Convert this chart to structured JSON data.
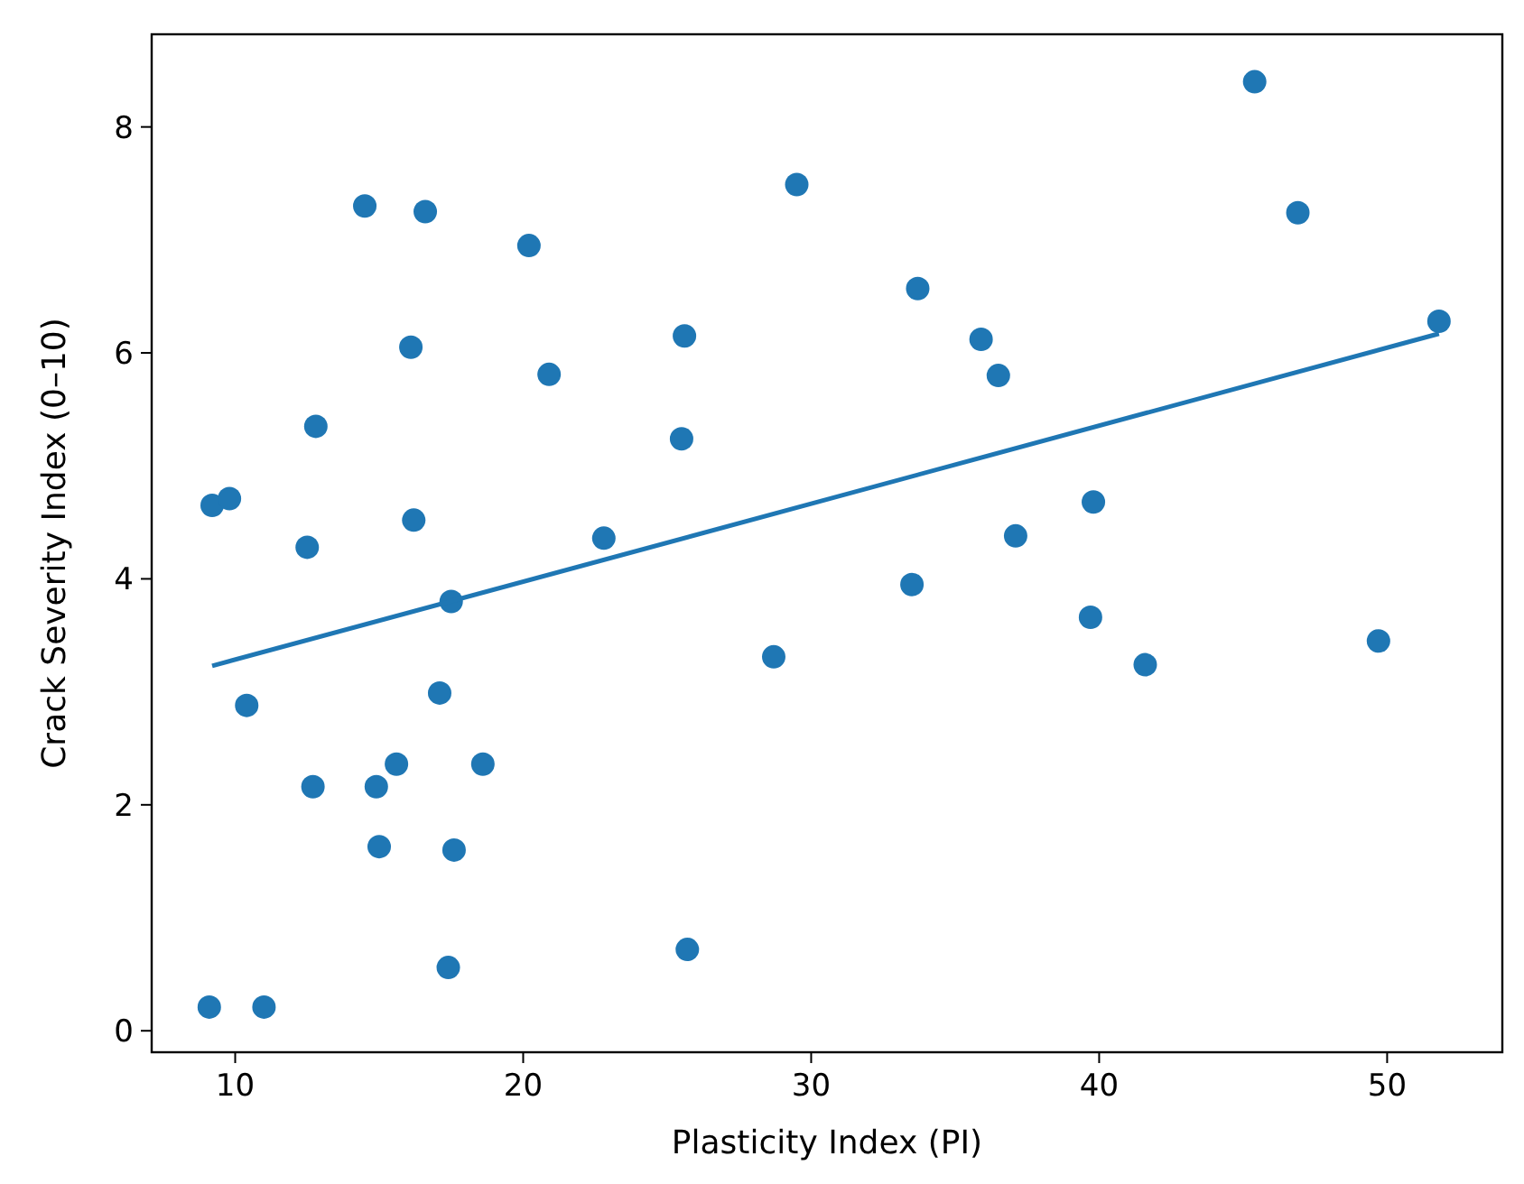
{
  "chart_data": {
    "type": "scatter",
    "xlabel": "Plasticity Index (PI)",
    "ylabel": "Crack Severity Index (0–10)",
    "xlim": [
      7.1,
      54
    ],
    "ylim": [
      -0.19,
      8.82
    ],
    "xticks": [
      10,
      20,
      30,
      40,
      50
    ],
    "yticks": [
      0,
      2,
      4,
      6,
      8
    ],
    "grid": false,
    "marker": "circle",
    "series": [
      {
        "color": "#1f77b4",
        "x": [
          9.2,
          9.8,
          10.4,
          9.1,
          11.0,
          12.5,
          12.8,
          12.7,
          14.5,
          16.6,
          16.1,
          16.2,
          14.9,
          15.0,
          15.6,
          17.5,
          17.1,
          17.6,
          17.4,
          18.6,
          20.2,
          20.9,
          22.8,
          25.5,
          25.6,
          25.7,
          28.7,
          29.5,
          33.7,
          33.5,
          35.9,
          36.5,
          37.1,
          39.8,
          39.7,
          41.6,
          45.4,
          46.9,
          49.7,
          51.8
        ],
        "values": [
          4.65,
          4.71,
          2.88,
          0.21,
          0.21,
          4.28,
          5.35,
          2.16,
          7.3,
          7.25,
          6.05,
          4.52,
          2.16,
          1.63,
          2.36,
          3.8,
          2.99,
          1.6,
          0.56,
          2.36,
          6.95,
          5.81,
          4.36,
          5.24,
          6.15,
          0.72,
          3.31,
          7.49,
          6.57,
          3.95,
          6.12,
          5.8,
          4.38,
          4.68,
          3.66,
          3.24,
          8.4,
          7.24,
          3.45,
          6.28
        ]
      },
      {
        "type": "line",
        "color": "#1f77b4",
        "x": [
          9.2,
          51.8
        ],
        "values": [
          3.23,
          6.17
        ],
        "marker": "none",
        "line_style": "solid"
      }
    ]
  }
}
